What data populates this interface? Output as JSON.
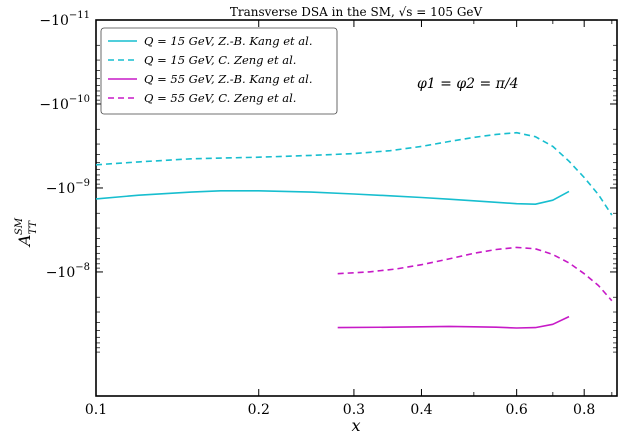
{
  "chart_data": {
    "type": "line",
    "title": "Transverse DSA in the SM, √s = 105 GeV",
    "xlabel": "x",
    "ylabel": "A_TT^SM",
    "x_scale": "log",
    "y_scale": "symlog-negative",
    "xlim": [
      0.1,
      0.92
    ],
    "ylim": [
      -1e-11,
      -3e-07
    ],
    "x_ticks": [
      {
        "value": 0.1,
        "label": "0.1"
      },
      {
        "value": 0.2,
        "label": "0.2"
      },
      {
        "value": 0.3,
        "label": "0.3"
      },
      {
        "value": 0.4,
        "label": "0.4"
      },
      {
        "value": 0.6,
        "label": "0.6"
      },
      {
        "value": 0.8,
        "label": "0.8"
      }
    ],
    "y_ticks": [
      {
        "exp": -11,
        "label": "−10",
        "sup": "−11"
      },
      {
        "exp": -10,
        "label": "−10",
        "sup": "−10"
      },
      {
        "exp": -9,
        "label": "−10",
        "sup": "−9"
      },
      {
        "exp": -8,
        "label": "−10",
        "sup": "−8"
      }
    ],
    "annotation": "φ1 = φ2 = π/4",
    "legend_position": "top-left",
    "series": [
      {
        "name": "Q = 15 GeV, Z.-B. Kang et al.",
        "color": "#17becf",
        "dash": "solid",
        "points": [
          [
            0.1,
            -1.35e-09
          ],
          [
            0.12,
            -1.22e-09
          ],
          [
            0.15,
            -1.12e-09
          ],
          [
            0.17,
            -1.08e-09
          ],
          [
            0.2,
            -1.08e-09
          ],
          [
            0.25,
            -1.12e-09
          ],
          [
            0.3,
            -1.18e-09
          ],
          [
            0.35,
            -1.24e-09
          ],
          [
            0.4,
            -1.3e-09
          ],
          [
            0.45,
            -1.36e-09
          ],
          [
            0.5,
            -1.42e-09
          ],
          [
            0.55,
            -1.48e-09
          ],
          [
            0.6,
            -1.54e-09
          ],
          [
            0.65,
            -1.56e-09
          ],
          [
            0.7,
            -1.4e-09
          ],
          [
            0.75,
            -1.1e-09
          ]
        ]
      },
      {
        "name": "Q = 15 GeV, C. Zeng et al.",
        "color": "#17becf",
        "dash": "dashed",
        "points": [
          [
            0.1,
            -5.3e-10
          ],
          [
            0.12,
            -4.9e-10
          ],
          [
            0.15,
            -4.5e-10
          ],
          [
            0.2,
            -4.3e-10
          ],
          [
            0.25,
            -4.1e-10
          ],
          [
            0.3,
            -3.9e-10
          ],
          [
            0.35,
            -3.6e-10
          ],
          [
            0.4,
            -3.2e-10
          ],
          [
            0.45,
            -2.8e-10
          ],
          [
            0.5,
            -2.5e-10
          ],
          [
            0.55,
            -2.3e-10
          ],
          [
            0.6,
            -2.2e-10
          ],
          [
            0.65,
            -2.45e-10
          ],
          [
            0.7,
            -3.2e-10
          ],
          [
            0.75,
            -4.8e-10
          ],
          [
            0.8,
            -7.5e-10
          ],
          [
            0.85,
            -1.2e-09
          ],
          [
            0.9,
            -2.1e-09
          ]
        ]
      },
      {
        "name": "Q = 55 GeV, Z.-B. Kang et al.",
        "color": "#c71ac7",
        "dash": "solid",
        "points": [
          [
            0.28,
            -4.6e-08
          ],
          [
            0.35,
            -4.55e-08
          ],
          [
            0.4,
            -4.5e-08
          ],
          [
            0.45,
            -4.45e-08
          ],
          [
            0.5,
            -4.5e-08
          ],
          [
            0.55,
            -4.55e-08
          ],
          [
            0.6,
            -4.65e-08
          ],
          [
            0.65,
            -4.6e-08
          ],
          [
            0.7,
            -4.2e-08
          ],
          [
            0.75,
            -3.4e-08
          ]
        ]
      },
      {
        "name": "Q = 55 GeV, C. Zeng et al.",
        "color": "#c71ac7",
        "dash": "dashed",
        "points": [
          [
            0.28,
            -1.05e-08
          ],
          [
            0.32,
            -1e-08
          ],
          [
            0.36,
            -9.2e-09
          ],
          [
            0.4,
            -8.2e-09
          ],
          [
            0.45,
            -7e-09
          ],
          [
            0.5,
            -6e-09
          ],
          [
            0.55,
            -5.4e-09
          ],
          [
            0.6,
            -5.1e-09
          ],
          [
            0.65,
            -5.3e-09
          ],
          [
            0.7,
            -6.2e-09
          ],
          [
            0.75,
            -7.8e-09
          ],
          [
            0.8,
            -1.05e-08
          ],
          [
            0.85,
            -1.45e-08
          ],
          [
            0.9,
            -2.2e-08
          ]
        ]
      }
    ]
  }
}
